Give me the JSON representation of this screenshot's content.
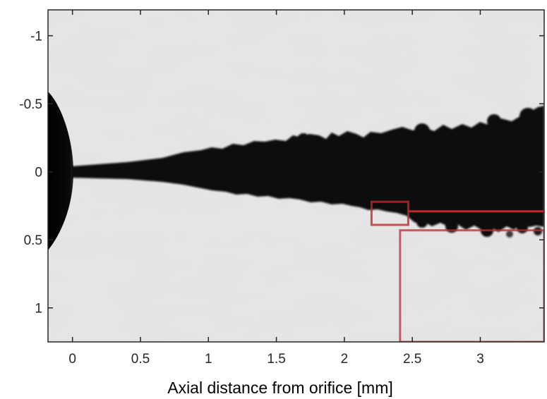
{
  "figure": {
    "xlabel": "Axial distance from orifice [mm]",
    "ylabel": "",
    "xlim": [
      -0.18,
      3.47
    ],
    "ylim": [
      -1.19,
      1.25
    ],
    "x_reversed": false,
    "y_reversed": true,
    "x_ticks": [
      0,
      0.5,
      1,
      1.5,
      2,
      2.5,
      3
    ],
    "x_tick_labels": [
      "0",
      "0.5",
      "1",
      "1.5",
      "2",
      "2.5",
      "3"
    ],
    "y_ticks": [
      -1,
      -0.5,
      0,
      0.5,
      1
    ],
    "y_tick_labels": [
      "-1",
      "-0.5",
      "0",
      "0.5",
      "1"
    ],
    "image": {
      "description_free_colors": {
        "background": "#e2e2e2",
        "spray": "#0e0e0e"
      },
      "nozzle_tip_x": 0,
      "spray_axis_y": 0
    },
    "highlight_color": "#c0282d",
    "highlights": [
      {
        "name": "small-inset-region",
        "x0": 2.2,
        "x1": 2.47,
        "y0": 0.22,
        "y1": 0.39
      },
      {
        "name": "magnified-inset-region",
        "x0": 2.41,
        "x1": 3.47,
        "y0": 0.43,
        "y1": 1.25
      }
    ]
  }
}
